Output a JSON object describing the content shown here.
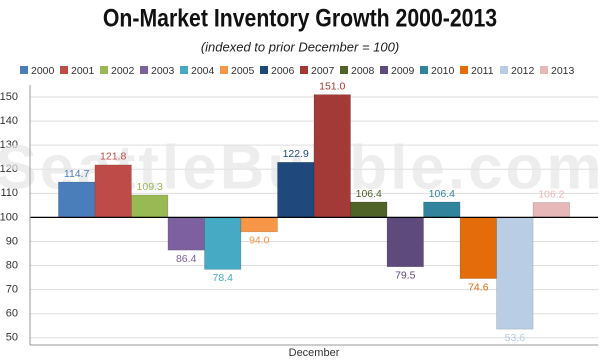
{
  "chart_data": {
    "type": "bar",
    "title": "On-Market Inventory Growth 2000-2013",
    "subtitle": "(indexed to prior December = 100)",
    "watermark": "SeattleBubble.com",
    "categories": [
      "December"
    ],
    "baseline": 100,
    "series": [
      {
        "name": "2000",
        "color": "#4a7ebb",
        "values": [
          114.7
        ]
      },
      {
        "name": "2001",
        "color": "#be4b48",
        "values": [
          121.8
        ]
      },
      {
        "name": "2002",
        "color": "#98b954",
        "values": [
          109.3
        ]
      },
      {
        "name": "2003",
        "color": "#7d60a0",
        "values": [
          86.4
        ]
      },
      {
        "name": "2004",
        "color": "#46aac5",
        "values": [
          78.4
        ]
      },
      {
        "name": "2005",
        "color": "#f79646",
        "values": [
          94.0
        ],
        "value_labels": [
          "94.0"
        ]
      },
      {
        "name": "2006",
        "color": "#1f497d",
        "values": [
          122.9
        ]
      },
      {
        "name": "2007",
        "color": "#a33a37",
        "values": [
          151.0
        ],
        "value_labels": [
          "151.0"
        ]
      },
      {
        "name": "2008",
        "color": "#4f6228",
        "values": [
          106.4
        ]
      },
      {
        "name": "2009",
        "color": "#5f4a7e",
        "values": [
          79.5
        ]
      },
      {
        "name": "2010",
        "color": "#31849b",
        "values": [
          106.4
        ]
      },
      {
        "name": "2011",
        "color": "#e46c0a",
        "values": [
          74.6
        ]
      },
      {
        "name": "2012",
        "color": "#b9cde5",
        "values": [
          53.6
        ]
      },
      {
        "name": "2013",
        "color": "#e6b9b8",
        "values": [
          106.2
        ]
      }
    ],
    "ylim": [
      47,
      155
    ],
    "yticks": [
      50,
      60,
      70,
      80,
      90,
      100,
      110,
      120,
      130,
      140,
      150
    ],
    "grid": true
  }
}
